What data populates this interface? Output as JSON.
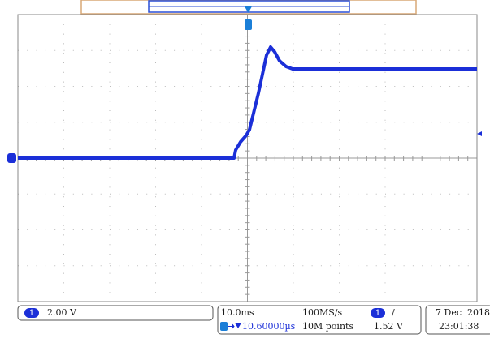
{
  "status_bar": {
    "channel": "1",
    "scale": "2.00 V",
    "timebase": "10.0ms",
    "sample_rate": "100MS/s",
    "trigger_source": "1",
    "trigger_slope": "/",
    "date": "7 Dec  2018",
    "delay": "10.60000µs",
    "record_length": "10M points",
    "trigger_level": "1.52 V",
    "time": "23:01:38"
  }
}
